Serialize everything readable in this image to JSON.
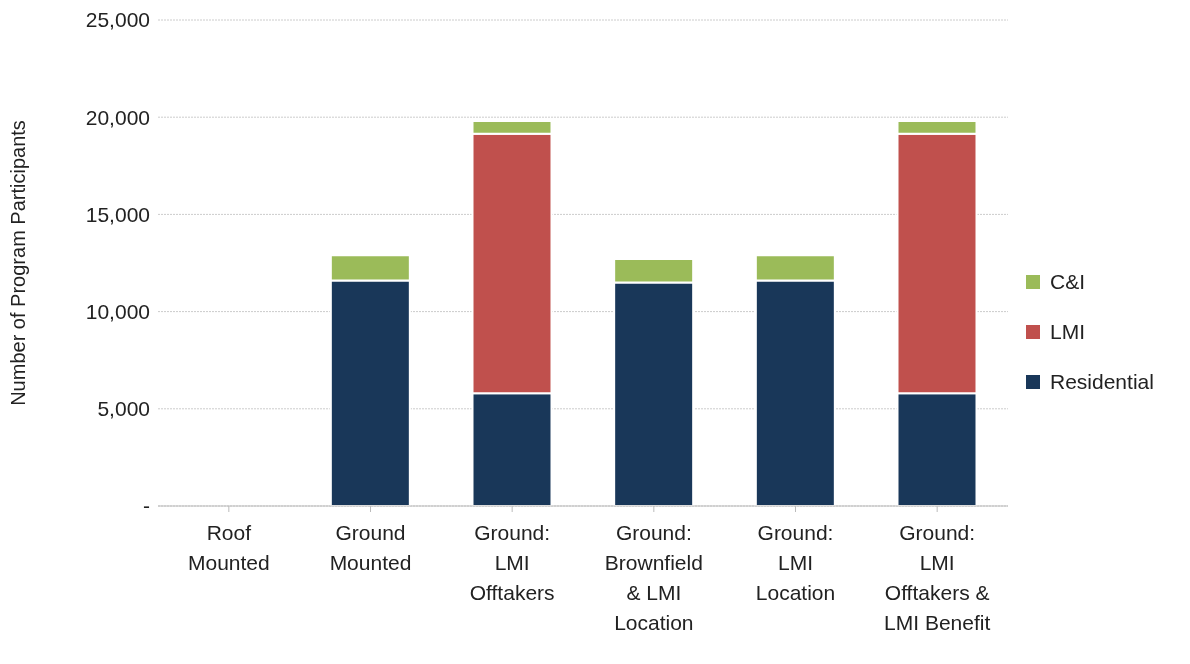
{
  "chart_data": {
    "type": "bar",
    "stacked": true,
    "ylabel": "Number of Program Participants",
    "categories": [
      "Roof\nMounted",
      "Ground\nMounted",
      "Ground:\nLMI\nOfftakers",
      "Ground:\nBrownfield\n& LMI\nLocation",
      "Ground:\nLMI\nLocation",
      "Ground:\nLMI\nOfftakers &\nLMI Benefit"
    ],
    "series": [
      {
        "name": "Residential",
        "color": "#193759",
        "values": [
          0,
          11600,
          5800,
          11500,
          11600,
          5800
        ]
      },
      {
        "name": "LMI",
        "color": "#c0504d",
        "values": [
          0,
          0,
          13350,
          0,
          0,
          13350
        ]
      },
      {
        "name": "C&I",
        "color": "#9bbb59",
        "values": [
          0,
          1300,
          650,
          1200,
          1300,
          650
        ]
      }
    ],
    "ylim": [
      0,
      25000
    ],
    "yticks": [
      {
        "value": 0,
        "label": "-"
      },
      {
        "value": 5000,
        "label": "5,000"
      },
      {
        "value": 10000,
        "label": "10,000"
      },
      {
        "value": 15000,
        "label": "15,000"
      },
      {
        "value": 20000,
        "label": "20,000"
      },
      {
        "value": 25000,
        "label": "25,000"
      }
    ],
    "grid": "y",
    "legend": "right"
  }
}
